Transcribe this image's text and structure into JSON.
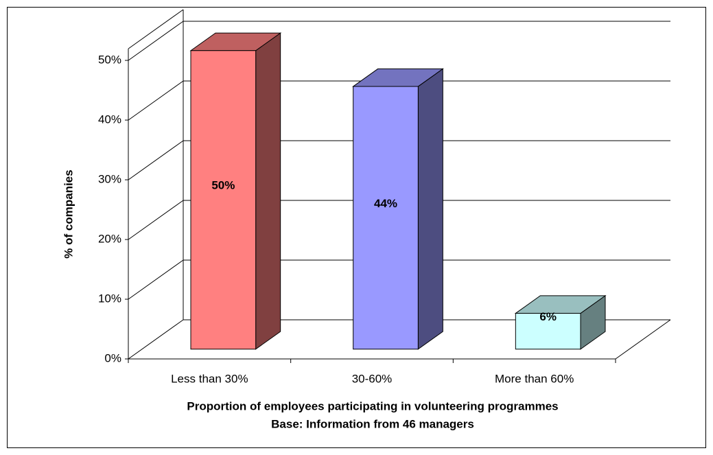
{
  "chart_data": {
    "type": "bar3d",
    "categories": [
      "Less than 30%",
      "30-60%",
      "More than 60%"
    ],
    "values": [
      50,
      44,
      6
    ],
    "value_labels": [
      "50%",
      "44%",
      "6%"
    ],
    "colors": [
      "#ff8080",
      "#9999ff",
      "#ccffff"
    ],
    "x_label": "Proportion of employees participating in volunteering programmes",
    "subtitle": "Base: Information from 46 managers",
    "y_label": "% of companies",
    "ylim": [
      0,
      50
    ],
    "yticks": [
      {
        "value": 0,
        "label": "0%"
      },
      {
        "value": 10,
        "label": "10%"
      },
      {
        "value": 20,
        "label": "20%"
      },
      {
        "value": 30,
        "label": "30%"
      },
      {
        "value": 40,
        "label": "40%"
      },
      {
        "value": 50,
        "label": "50%"
      }
    ],
    "grid": true
  }
}
